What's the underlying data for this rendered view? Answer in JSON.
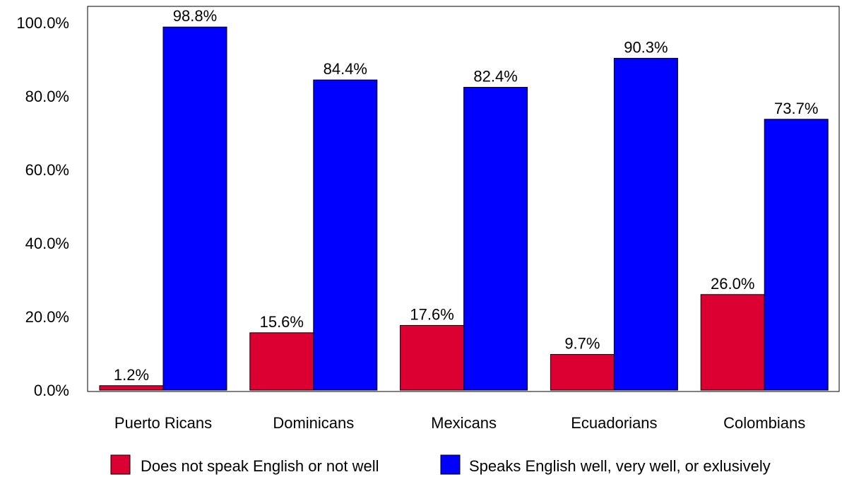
{
  "chart_data": {
    "type": "bar",
    "categories": [
      "Puerto Ricans",
      "Dominicans",
      "Mexicans",
      "Ecuadorians",
      "Colombians"
    ],
    "series": [
      {
        "name": "Does not speak English or not well",
        "values": [
          1.2,
          15.6,
          17.6,
          9.7,
          26.0
        ],
        "labels": [
          "1.2%",
          "15.6%",
          "17.6%",
          "9.7%",
          "26.0%"
        ],
        "color": "#dc0032"
      },
      {
        "name": "Speaks English well, very well, or exlusively",
        "values": [
          98.8,
          84.4,
          82.4,
          90.3,
          73.7
        ],
        "labels": [
          "98.8%",
          "84.4%",
          "82.4%",
          "90.3%",
          "73.7%"
        ],
        "color": "#0000ff"
      }
    ],
    "yticks": [
      0,
      20,
      40,
      60,
      80,
      100
    ],
    "ytick_labels": [
      "0.0%",
      "20.0%",
      "40.0%",
      "60.0%",
      "80.0%",
      "100.0%"
    ],
    "ylim": [
      0,
      105
    ],
    "title": "",
    "xlabel": "",
    "ylabel": "",
    "grid": false,
    "legend_position": "bottom"
  }
}
